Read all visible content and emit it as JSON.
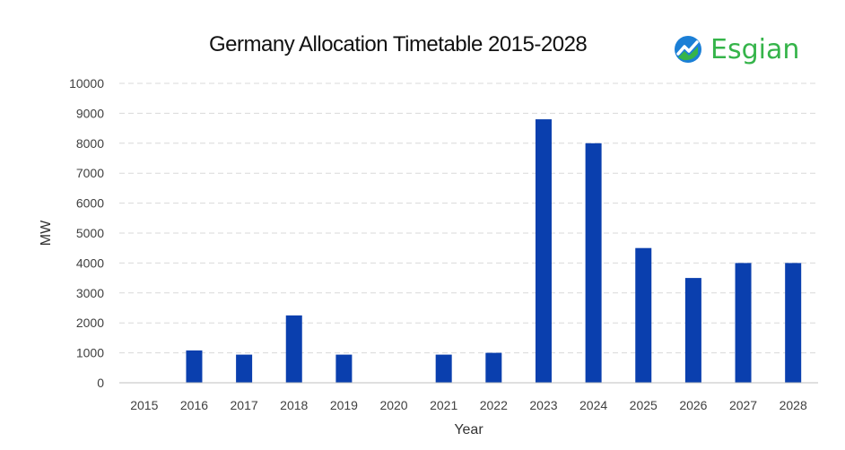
{
  "chart_data": {
    "type": "bar",
    "title": "Germany Allocation Timetable 2015-2028",
    "xlabel": "Year",
    "ylabel": "MW",
    "ylim": [
      0,
      10000
    ],
    "yticks": [
      0,
      1000,
      2000,
      3000,
      4000,
      5000,
      6000,
      7000,
      8000,
      9000,
      10000
    ],
    "grid": "horizontal dashed",
    "categories": [
      "2015",
      "2016",
      "2017",
      "2018",
      "2019",
      "2020",
      "2021",
      "2022",
      "2023",
      "2024",
      "2025",
      "2026",
      "2027",
      "2028"
    ],
    "values": [
      0,
      1080,
      940,
      2250,
      940,
      0,
      940,
      1000,
      8800,
      8000,
      4500,
      3500,
      4000,
      4000
    ],
    "bar_color": "#0a3fae"
  },
  "logo": {
    "name": "Esgian",
    "icon": "esgian-logo-icon",
    "color": "#35b44a"
  }
}
